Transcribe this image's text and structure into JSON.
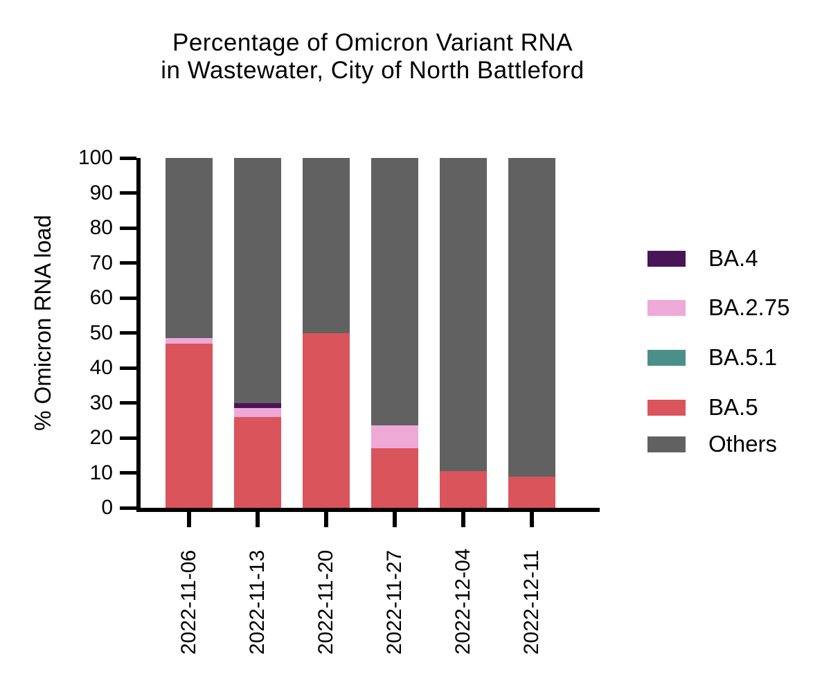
{
  "chart": {
    "title_line1": "Percentage of Omicron Variant RNA",
    "title_line2": "in Wastewater, City of North Battleford"
  },
  "chart_data": {
    "type": "bar",
    "stacked": true,
    "title": "Percentage of Omicron Variant RNA in Wastewater, City of North Battleford",
    "xlabel": "",
    "ylabel": "% Omicron RNA load",
    "ylim": [
      0,
      100
    ],
    "yticks": [
      0,
      10,
      20,
      30,
      40,
      50,
      60,
      70,
      80,
      90,
      100
    ],
    "grid": false,
    "legend_position": "right",
    "background": "#FFFFFF",
    "axis_color": "#000000",
    "categories": [
      "2022-11-06",
      "2022-11-13",
      "2022-11-20",
      "2022-11-27",
      "2022-12-04",
      "2022-12-11"
    ],
    "series": [
      {
        "name": "BA.4",
        "color": "#4A1556",
        "values": [
          0,
          1.5,
          0,
          0,
          0,
          0
        ]
      },
      {
        "name": "BA.2.75",
        "color": "#EFA9D8",
        "values": [
          1.5,
          2.5,
          0,
          6.5,
          0,
          0
        ]
      },
      {
        "name": "BA.5.1",
        "color": "#4A9089",
        "values": [
          0,
          0,
          0,
          0,
          0,
          0
        ]
      },
      {
        "name": "BA.5",
        "color": "#DA545C",
        "values": [
          47,
          26,
          50,
          17,
          10.5,
          9
        ]
      },
      {
        "name": "Others",
        "color": "#616161",
        "values": [
          51.5,
          70,
          50,
          76.5,
          89.5,
          91
        ]
      }
    ],
    "stack_order_bottom_to_top": [
      "BA.5",
      "BA.5.1",
      "BA.2.75",
      "BA.4",
      "Others"
    ]
  }
}
